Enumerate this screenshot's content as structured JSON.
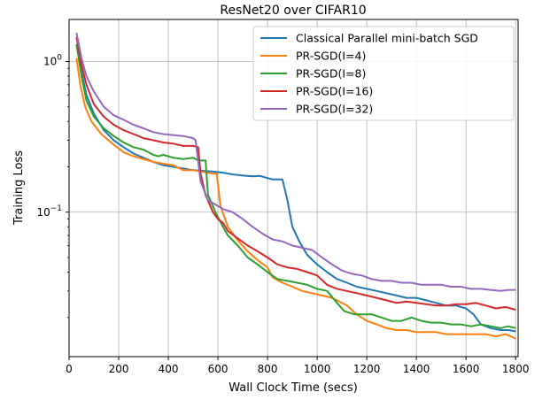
{
  "chart_data": {
    "type": "line",
    "title": "ResNet20 over CIFAR10",
    "xlabel": "Wall Clock Time (secs)",
    "ylabel": "Training Loss",
    "xlim": [
      0,
      1810
    ],
    "ylim": [
      0.011,
      1.9
    ],
    "yscale": "log",
    "grid": true,
    "legend_position": "top-right",
    "x_ticks": [
      0,
      200,
      400,
      600,
      800,
      1000,
      1200,
      1400,
      1600,
      1800
    ],
    "x_tick_labels": [
      "0",
      "200",
      "400",
      "600",
      "800",
      "1000",
      "1200",
      "1400",
      "1600",
      "1800"
    ],
    "y_ticks": [
      1,
      0.1
    ],
    "y_tick_labels": [
      {
        "base": "10",
        "exp": "0"
      },
      {
        "base": "10",
        "exp": "−1"
      }
    ],
    "series": [
      {
        "name": "Classical Parallel mini-batch SGD",
        "color": "#1f77b4",
        "points": [
          [
            30,
            1.3
          ],
          [
            50,
            0.85
          ],
          [
            70,
            0.6
          ],
          [
            100,
            0.45
          ],
          [
            140,
            0.35
          ],
          [
            180,
            0.3
          ],
          [
            220,
            0.27
          ],
          [
            260,
            0.245
          ],
          [
            300,
            0.23
          ],
          [
            340,
            0.215
          ],
          [
            380,
            0.205
          ],
          [
            420,
            0.2
          ],
          [
            460,
            0.195
          ],
          [
            500,
            0.19
          ],
          [
            540,
            0.188
          ],
          [
            580,
            0.186
          ],
          [
            620,
            0.183
          ],
          [
            660,
            0.178
          ],
          [
            700,
            0.175
          ],
          [
            740,
            0.173
          ],
          [
            770,
            0.174
          ],
          [
            790,
            0.17
          ],
          [
            820,
            0.165
          ],
          [
            860,
            0.165
          ],
          [
            880,
            0.12
          ],
          [
            900,
            0.08
          ],
          [
            930,
            0.063
          ],
          [
            960,
            0.052
          ],
          [
            1000,
            0.045
          ],
          [
            1040,
            0.04
          ],
          [
            1080,
            0.036
          ],
          [
            1120,
            0.034
          ],
          [
            1160,
            0.032
          ],
          [
            1200,
            0.031
          ],
          [
            1240,
            0.03
          ],
          [
            1280,
            0.029
          ],
          [
            1320,
            0.028
          ],
          [
            1360,
            0.027
          ],
          [
            1400,
            0.027
          ],
          [
            1440,
            0.026
          ],
          [
            1480,
            0.025
          ],
          [
            1520,
            0.024
          ],
          [
            1560,
            0.024
          ],
          [
            1600,
            0.023
          ],
          [
            1630,
            0.021
          ],
          [
            1660,
            0.018
          ],
          [
            1700,
            0.017
          ],
          [
            1740,
            0.0165
          ],
          [
            1770,
            0.0165
          ],
          [
            1800,
            0.0162
          ]
        ]
      },
      {
        "name": "PR-SGD(I=4)",
        "color": "#ff7f0e",
        "points": [
          [
            30,
            1.05
          ],
          [
            45,
            0.7
          ],
          [
            65,
            0.5
          ],
          [
            90,
            0.4
          ],
          [
            130,
            0.33
          ],
          [
            180,
            0.28
          ],
          [
            220,
            0.25
          ],
          [
            260,
            0.235
          ],
          [
            300,
            0.225
          ],
          [
            340,
            0.215
          ],
          [
            380,
            0.21
          ],
          [
            420,
            0.205
          ],
          [
            460,
            0.19
          ],
          [
            500,
            0.19
          ],
          [
            540,
            0.185
          ],
          [
            580,
            0.18
          ],
          [
            595,
            0.18
          ],
          [
            610,
            0.11
          ],
          [
            640,
            0.08
          ],
          [
            680,
            0.065
          ],
          [
            720,
            0.055
          ],
          [
            760,
            0.048
          ],
          [
            800,
            0.043
          ],
          [
            820,
            0.037
          ],
          [
            860,
            0.034
          ],
          [
            900,
            0.032
          ],
          [
            940,
            0.03
          ],
          [
            980,
            0.029
          ],
          [
            1020,
            0.028
          ],
          [
            1060,
            0.027
          ],
          [
            1080,
            0.026
          ],
          [
            1120,
            0.024
          ],
          [
            1160,
            0.021
          ],
          [
            1200,
            0.019
          ],
          [
            1240,
            0.018
          ],
          [
            1280,
            0.017
          ],
          [
            1320,
            0.0165
          ],
          [
            1360,
            0.0165
          ],
          [
            1400,
            0.016
          ],
          [
            1440,
            0.016
          ],
          [
            1480,
            0.016
          ],
          [
            1520,
            0.0155
          ],
          [
            1560,
            0.0155
          ],
          [
            1600,
            0.0155
          ],
          [
            1640,
            0.0155
          ],
          [
            1680,
            0.0155
          ],
          [
            1720,
            0.015
          ],
          [
            1760,
            0.0155
          ],
          [
            1800,
            0.0145
          ]
        ]
      },
      {
        "name": "PR-SGD(I=8)",
        "color": "#2ca02c",
        "points": [
          [
            30,
            1.3
          ],
          [
            50,
            0.8
          ],
          [
            70,
            0.55
          ],
          [
            100,
            0.43
          ],
          [
            140,
            0.36
          ],
          [
            180,
            0.32
          ],
          [
            220,
            0.29
          ],
          [
            260,
            0.27
          ],
          [
            300,
            0.26
          ],
          [
            340,
            0.24
          ],
          [
            360,
            0.235
          ],
          [
            380,
            0.24
          ],
          [
            420,
            0.23
          ],
          [
            460,
            0.225
          ],
          [
            500,
            0.23
          ],
          [
            520,
            0.22
          ],
          [
            550,
            0.22
          ],
          [
            560,
            0.13
          ],
          [
            590,
            0.1
          ],
          [
            620,
            0.08
          ],
          [
            640,
            0.07
          ],
          [
            680,
            0.06
          ],
          [
            720,
            0.05
          ],
          [
            760,
            0.045
          ],
          [
            800,
            0.04
          ],
          [
            840,
            0.036
          ],
          [
            880,
            0.035
          ],
          [
            920,
            0.034
          ],
          [
            960,
            0.033
          ],
          [
            1000,
            0.031
          ],
          [
            1040,
            0.03
          ],
          [
            1080,
            0.025
          ],
          [
            1110,
            0.022
          ],
          [
            1150,
            0.021
          ],
          [
            1180,
            0.021
          ],
          [
            1220,
            0.021
          ],
          [
            1260,
            0.02
          ],
          [
            1300,
            0.019
          ],
          [
            1340,
            0.019
          ],
          [
            1380,
            0.02
          ],
          [
            1420,
            0.019
          ],
          [
            1460,
            0.0185
          ],
          [
            1500,
            0.0185
          ],
          [
            1540,
            0.018
          ],
          [
            1580,
            0.018
          ],
          [
            1620,
            0.0175
          ],
          [
            1660,
            0.018
          ],
          [
            1700,
            0.0175
          ],
          [
            1740,
            0.017
          ],
          [
            1770,
            0.0175
          ],
          [
            1800,
            0.017
          ]
        ]
      },
      {
        "name": "PR-SGD(I=16)",
        "color": "#d62728",
        "points": [
          [
            30,
            1.45
          ],
          [
            50,
            0.95
          ],
          [
            70,
            0.7
          ],
          [
            100,
            0.52
          ],
          [
            140,
            0.43
          ],
          [
            180,
            0.38
          ],
          [
            220,
            0.35
          ],
          [
            260,
            0.33
          ],
          [
            300,
            0.31
          ],
          [
            340,
            0.3
          ],
          [
            380,
            0.29
          ],
          [
            420,
            0.285
          ],
          [
            460,
            0.275
          ],
          [
            500,
            0.275
          ],
          [
            520,
            0.27
          ],
          [
            530,
            0.18
          ],
          [
            550,
            0.13
          ],
          [
            580,
            0.1
          ],
          [
            600,
            0.09
          ],
          [
            620,
            0.085
          ],
          [
            640,
            0.075
          ],
          [
            680,
            0.067
          ],
          [
            720,
            0.06
          ],
          [
            760,
            0.055
          ],
          [
            800,
            0.05
          ],
          [
            840,
            0.045
          ],
          [
            880,
            0.043
          ],
          [
            920,
            0.042
          ],
          [
            960,
            0.04
          ],
          [
            1000,
            0.038
          ],
          [
            1040,
            0.033
          ],
          [
            1080,
            0.031
          ],
          [
            1120,
            0.03
          ],
          [
            1160,
            0.029
          ],
          [
            1200,
            0.028
          ],
          [
            1240,
            0.027
          ],
          [
            1280,
            0.026
          ],
          [
            1320,
            0.025
          ],
          [
            1360,
            0.0255
          ],
          [
            1400,
            0.025
          ],
          [
            1440,
            0.0245
          ],
          [
            1480,
            0.024
          ],
          [
            1520,
            0.024
          ],
          [
            1560,
            0.0245
          ],
          [
            1600,
            0.0245
          ],
          [
            1640,
            0.025
          ],
          [
            1680,
            0.024
          ],
          [
            1720,
            0.023
          ],
          [
            1760,
            0.0235
          ],
          [
            1800,
            0.0225
          ]
        ]
      },
      {
        "name": "PR-SGD(I=32)",
        "color": "#9467bd",
        "points": [
          [
            30,
            1.55
          ],
          [
            50,
            1.05
          ],
          [
            70,
            0.8
          ],
          [
            100,
            0.63
          ],
          [
            140,
            0.5
          ],
          [
            180,
            0.44
          ],
          [
            220,
            0.41
          ],
          [
            260,
            0.38
          ],
          [
            300,
            0.36
          ],
          [
            340,
            0.34
          ],
          [
            380,
            0.33
          ],
          [
            420,
            0.325
          ],
          [
            460,
            0.32
          ],
          [
            500,
            0.31
          ],
          [
            510,
            0.3
          ],
          [
            530,
            0.16
          ],
          [
            560,
            0.12
          ],
          [
            600,
            0.11
          ],
          [
            620,
            0.105
          ],
          [
            660,
            0.1
          ],
          [
            700,
            0.09
          ],
          [
            740,
            0.08
          ],
          [
            780,
            0.072
          ],
          [
            820,
            0.066
          ],
          [
            860,
            0.064
          ],
          [
            900,
            0.06
          ],
          [
            940,
            0.058
          ],
          [
            980,
            0.056
          ],
          [
            1020,
            0.05
          ],
          [
            1060,
            0.045
          ],
          [
            1100,
            0.041
          ],
          [
            1140,
            0.039
          ],
          [
            1180,
            0.038
          ],
          [
            1220,
            0.036
          ],
          [
            1260,
            0.035
          ],
          [
            1300,
            0.035
          ],
          [
            1340,
            0.034
          ],
          [
            1380,
            0.034
          ],
          [
            1420,
            0.033
          ],
          [
            1460,
            0.033
          ],
          [
            1500,
            0.033
          ],
          [
            1540,
            0.032
          ],
          [
            1580,
            0.032
          ],
          [
            1620,
            0.031
          ],
          [
            1660,
            0.031
          ],
          [
            1700,
            0.0305
          ],
          [
            1740,
            0.03
          ],
          [
            1770,
            0.0305
          ],
          [
            1800,
            0.0305
          ]
        ]
      }
    ]
  }
}
